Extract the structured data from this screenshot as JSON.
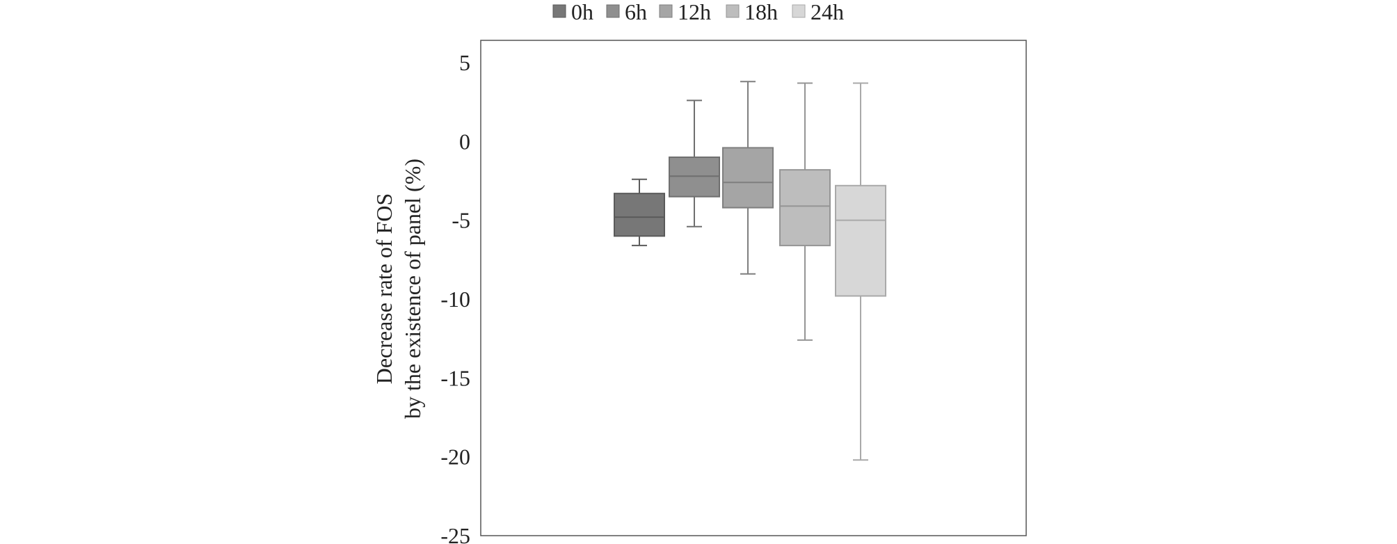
{
  "chart_data": {
    "type": "box",
    "title": "",
    "xlabel": "",
    "ylabel_lines": [
      "Decrease rate of FOS",
      "by the existence of panel (%)"
    ],
    "ylim": [
      -25,
      5
    ],
    "yticks": [
      5,
      0,
      -5,
      -10,
      -15,
      -20,
      -25
    ],
    "ytick_labels": [
      "5",
      "0",
      "-5",
      "-10",
      "-15",
      "-20",
      "-25"
    ],
    "legend_position": "top",
    "grid": false,
    "series": [
      {
        "name": "0h",
        "color": "#777777",
        "stroke": "#5a5a5a",
        "whisker_low": -6.6,
        "q1": -6.0,
        "median": -4.8,
        "q3": -3.3,
        "whisker_high": -2.4
      },
      {
        "name": "6h",
        "color": "#8f8f8f",
        "stroke": "#6f6f6f",
        "whisker_low": -5.4,
        "q1": -3.5,
        "median": -2.2,
        "q3": -1.0,
        "whisker_high": 2.6
      },
      {
        "name": "12h",
        "color": "#a5a5a5",
        "stroke": "#7f7f7f",
        "whisker_low": -8.4,
        "q1": -4.2,
        "median": -2.6,
        "q3": -0.4,
        "whisker_high": 3.8
      },
      {
        "name": "18h",
        "color": "#bdbdbd",
        "stroke": "#959595",
        "whisker_low": -12.6,
        "q1": -6.6,
        "median": -4.1,
        "q3": -1.8,
        "whisker_high": 3.7
      },
      {
        "name": "24h",
        "color": "#d7d7d7",
        "stroke": "#a9a9a9",
        "whisker_low": -20.2,
        "q1": -9.8,
        "median": -5.0,
        "q3": -2.8,
        "whisker_high": 3.7
      }
    ]
  }
}
